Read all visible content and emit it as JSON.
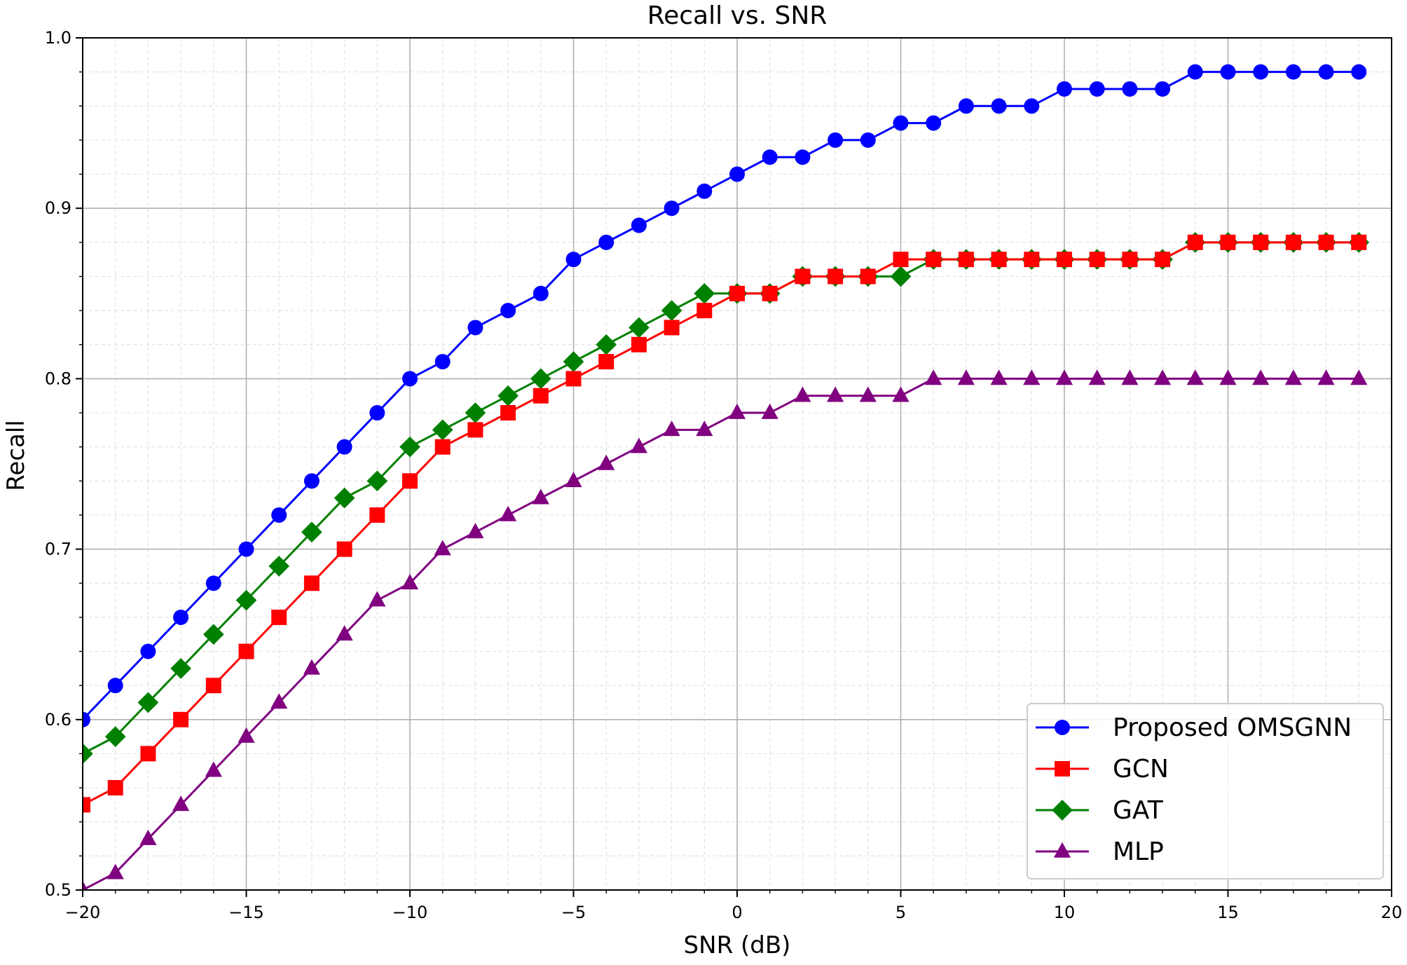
{
  "chart_data": {
    "type": "line",
    "title": "Recall vs. SNR",
    "xlabel": "SNR (dB)",
    "ylabel": "Recall",
    "xlim": [
      -20,
      20
    ],
    "ylim": [
      0.5,
      1.0
    ],
    "xticks": [
      -20,
      -15,
      -10,
      -5,
      0,
      5,
      10,
      15,
      20
    ],
    "xtick_labels": [
      "−20",
      "−15",
      "−10",
      "−5",
      "0",
      "5",
      "10",
      "15",
      "20"
    ],
    "yticks": [
      0.5,
      0.6,
      0.7,
      0.8,
      0.9,
      1.0
    ],
    "ytick_labels": [
      "0.5",
      "0.6",
      "0.7",
      "0.8",
      "0.9",
      "1.0"
    ],
    "grid": true,
    "minor_grid": true,
    "legend_position": "lower-right",
    "x": [
      -20,
      -19,
      -18,
      -17,
      -16,
      -15,
      -14,
      -13,
      -12,
      -11,
      -10,
      -9,
      -8,
      -7,
      -6,
      -5,
      -4,
      -3,
      -2,
      -1,
      0,
      1,
      2,
      3,
      4,
      5,
      6,
      7,
      8,
      9,
      10,
      11,
      12,
      13,
      14,
      15,
      16,
      17,
      18,
      19
    ],
    "series": [
      {
        "name": "Proposed OMSGNN",
        "color": "#0000ff",
        "marker": "circle",
        "values": [
          0.6,
          0.62,
          0.64,
          0.66,
          0.68,
          0.7,
          0.72,
          0.74,
          0.76,
          0.78,
          0.8,
          0.81,
          0.83,
          0.84,
          0.85,
          0.87,
          0.88,
          0.89,
          0.9,
          0.91,
          0.92,
          0.93,
          0.93,
          0.94,
          0.94,
          0.95,
          0.95,
          0.96,
          0.96,
          0.96,
          0.97,
          0.97,
          0.97,
          0.97,
          0.98,
          0.98,
          0.98,
          0.98,
          0.98,
          0.98
        ]
      },
      {
        "name": "GCN",
        "color": "#ff0000",
        "marker": "square",
        "values": [
          0.55,
          0.56,
          0.58,
          0.6,
          0.62,
          0.64,
          0.66,
          0.68,
          0.7,
          0.72,
          0.74,
          0.76,
          0.77,
          0.78,
          0.79,
          0.8,
          0.81,
          0.82,
          0.83,
          0.84,
          0.85,
          0.85,
          0.86,
          0.86,
          0.86,
          0.87,
          0.87,
          0.87,
          0.87,
          0.87,
          0.87,
          0.87,
          0.87,
          0.87,
          0.88,
          0.88,
          0.88,
          0.88,
          0.88,
          0.88
        ]
      },
      {
        "name": "GAT",
        "color": "#008000",
        "marker": "diamond",
        "values": [
          0.58,
          0.59,
          0.61,
          0.63,
          0.65,
          0.67,
          0.69,
          0.71,
          0.73,
          0.74,
          0.76,
          0.77,
          0.78,
          0.79,
          0.8,
          0.81,
          0.82,
          0.83,
          0.84,
          0.85,
          0.85,
          0.85,
          0.86,
          0.86,
          0.86,
          0.86,
          0.87,
          0.87,
          0.87,
          0.87,
          0.87,
          0.87,
          0.87,
          0.87,
          0.88,
          0.88,
          0.88,
          0.88,
          0.88,
          0.88
        ]
      },
      {
        "name": "MLP",
        "color": "#800080",
        "marker": "triangle",
        "values": [
          0.5,
          0.51,
          0.53,
          0.55,
          0.57,
          0.59,
          0.61,
          0.63,
          0.65,
          0.67,
          0.68,
          0.7,
          0.71,
          0.72,
          0.73,
          0.74,
          0.75,
          0.76,
          0.77,
          0.77,
          0.78,
          0.78,
          0.79,
          0.79,
          0.79,
          0.79,
          0.8,
          0.8,
          0.8,
          0.8,
          0.8,
          0.8,
          0.8,
          0.8,
          0.8,
          0.8,
          0.8,
          0.8,
          0.8,
          0.8
        ]
      }
    ]
  }
}
